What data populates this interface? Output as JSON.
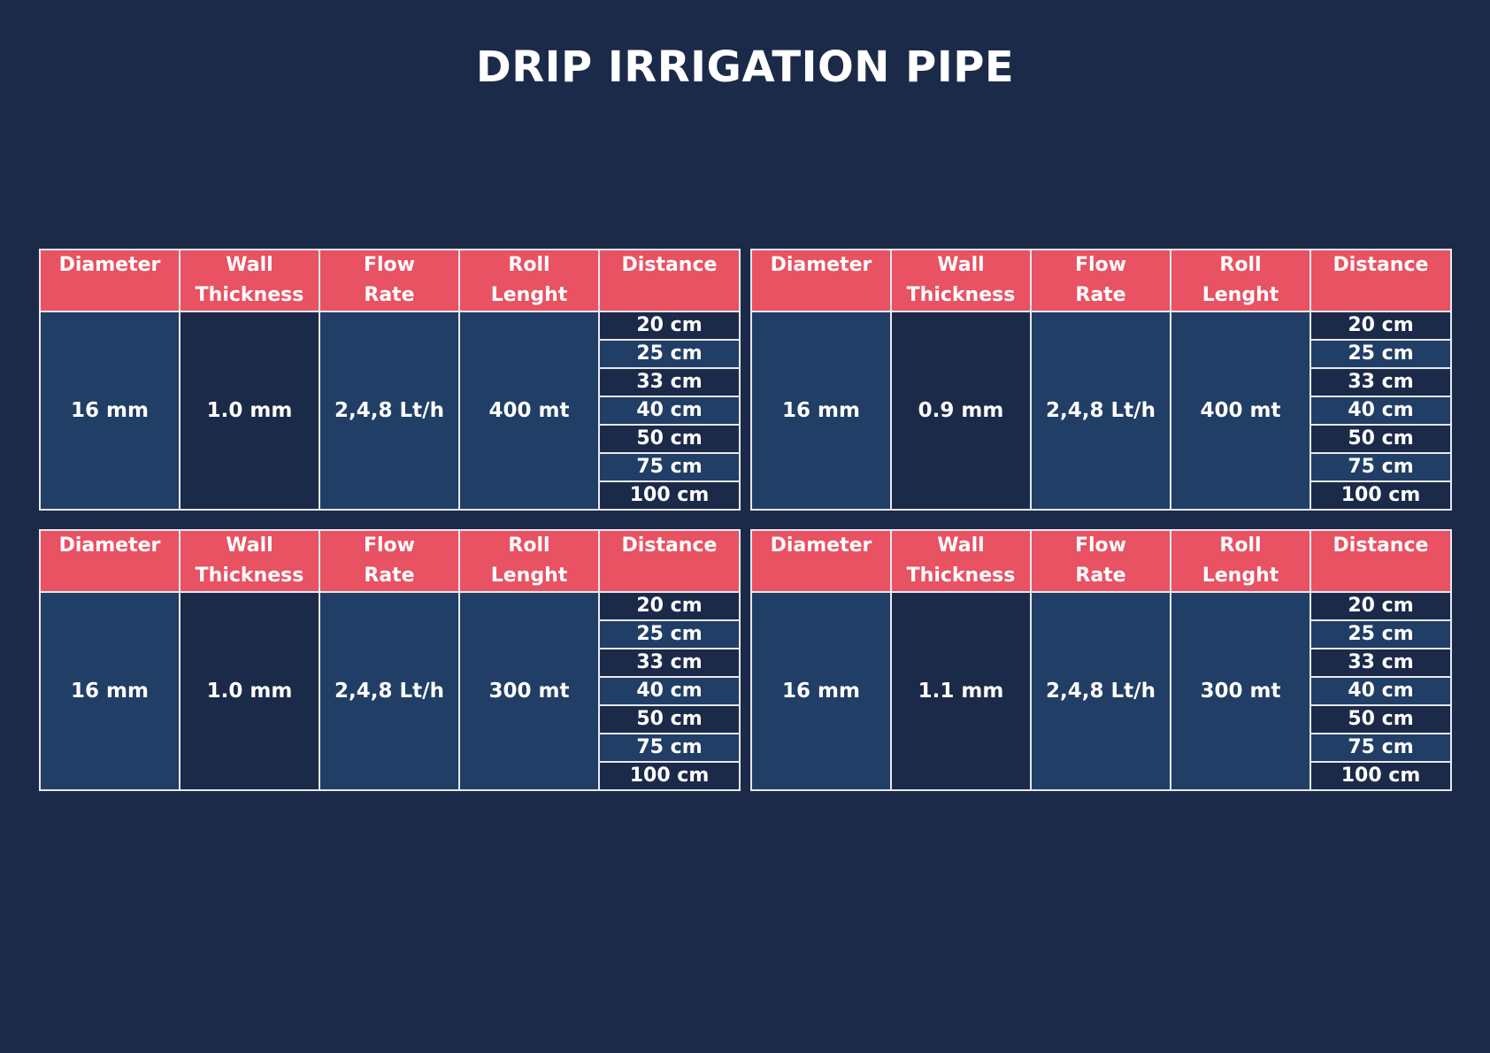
{
  "title": "DRIP IRRIGATION PIPE",
  "colors": {
    "background": "#1c2a4a",
    "header": "#e85262",
    "cell_light": "#213e66",
    "cell_dark": "#1c2a4a"
  },
  "headers": {
    "diameter": [
      "Diameter"
    ],
    "wall_thickness": [
      "Wall",
      "Thickness"
    ],
    "flow_rate": [
      "Flow",
      "Rate"
    ],
    "roll_length": [
      "Roll",
      "Lenght"
    ],
    "distance": [
      "Distance"
    ]
  },
  "tables": [
    {
      "diameter": "16 mm",
      "wall_thickness": "1.0 mm",
      "flow_rate": "2,4,8 Lt/h",
      "roll_length": "400 mt",
      "distances": [
        "20 cm",
        "25 cm",
        "33 cm",
        "40 cm",
        "50 cm",
        "75 cm",
        "100 cm"
      ]
    },
    {
      "diameter": "16 mm",
      "wall_thickness": "0.9 mm",
      "flow_rate": "2,4,8 Lt/h",
      "roll_length": "400 mt",
      "distances": [
        "20 cm",
        "25 cm",
        "33 cm",
        "40 cm",
        "50 cm",
        "75 cm",
        "100 cm"
      ]
    },
    {
      "diameter": "16 mm",
      "wall_thickness": "1.0 mm",
      "flow_rate": "2,4,8 Lt/h",
      "roll_length": "300 mt",
      "distances": [
        "20 cm",
        "25 cm",
        "33 cm",
        "40 cm",
        "50 cm",
        "75 cm",
        "100 cm"
      ]
    },
    {
      "diameter": "16 mm",
      "wall_thickness": "1.1 mm",
      "flow_rate": "2,4,8 Lt/h",
      "roll_length": "300 mt",
      "distances": [
        "20 cm",
        "25 cm",
        "33 cm",
        "40 cm",
        "50 cm",
        "75 cm",
        "100 cm"
      ]
    }
  ]
}
